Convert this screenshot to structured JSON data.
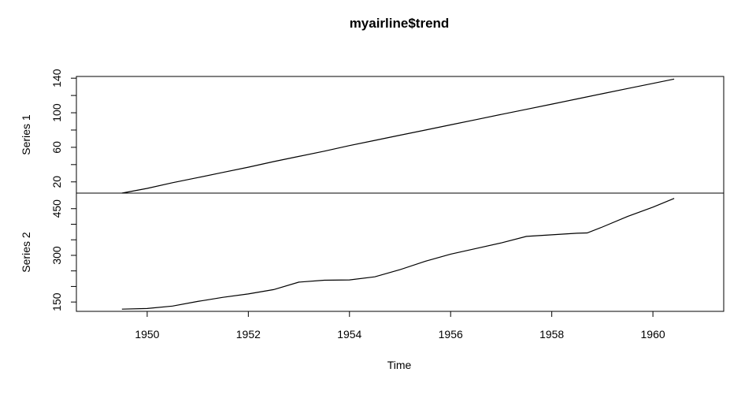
{
  "chart_data": {
    "type": "line",
    "title": "myairline$trend",
    "xlabel": "Time",
    "x_ticks": [
      1950,
      1952,
      1954,
      1956,
      1958,
      1960
    ],
    "xlim": [
      1948.6,
      1961.4
    ],
    "grid": false,
    "panels": [
      {
        "name": "Series 1",
        "ylim": [
          7,
          142
        ],
        "y_ticks": [
          20,
          40,
          60,
          80,
          100,
          120,
          140
        ],
        "y_tick_labels": [
          "20",
          "",
          "60",
          "",
          "100",
          "",
          "140"
        ],
        "x": [
          1949.5,
          1950.0,
          1950.5,
          1951.0,
          1951.5,
          1952.0,
          1952.5,
          1953.0,
          1953.5,
          1954.0,
          1954.5,
          1955.0,
          1955.5,
          1956.0,
          1956.5,
          1957.0,
          1957.5,
          1958.0,
          1958.5,
          1959.0,
          1959.5,
          1960.0,
          1960.42
        ],
        "values": [
          7,
          12.5,
          19,
          25,
          31,
          37,
          43.5,
          49.5,
          55.5,
          62,
          68,
          74,
          80,
          86,
          92,
          98,
          104,
          110,
          116,
          122,
          128,
          134,
          139
        ]
      },
      {
        "name": "Series 2",
        "ylim": [
          120,
          500
        ],
        "y_ticks": [
          150,
          200,
          250,
          300,
          350,
          400,
          450
        ],
        "y_tick_labels": [
          "150",
          "",
          "",
          "300",
          "",
          "",
          "450"
        ],
        "x": [
          1949.5,
          1950.0,
          1950.5,
          1951.0,
          1951.5,
          1952.0,
          1952.5,
          1953.0,
          1953.5,
          1954.0,
          1954.5,
          1955.0,
          1955.5,
          1956.0,
          1956.5,
          1957.0,
          1957.5,
          1958.0,
          1958.5,
          1958.7,
          1959.0,
          1959.5,
          1960.0,
          1960.42
        ],
        "values": [
          127,
          129,
          137,
          152,
          165,
          176,
          190,
          214,
          220,
          221,
          231,
          254,
          281,
          304,
          322,
          340,
          361,
          366,
          371,
          372,
          391,
          425,
          455,
          483
        ]
      }
    ]
  }
}
